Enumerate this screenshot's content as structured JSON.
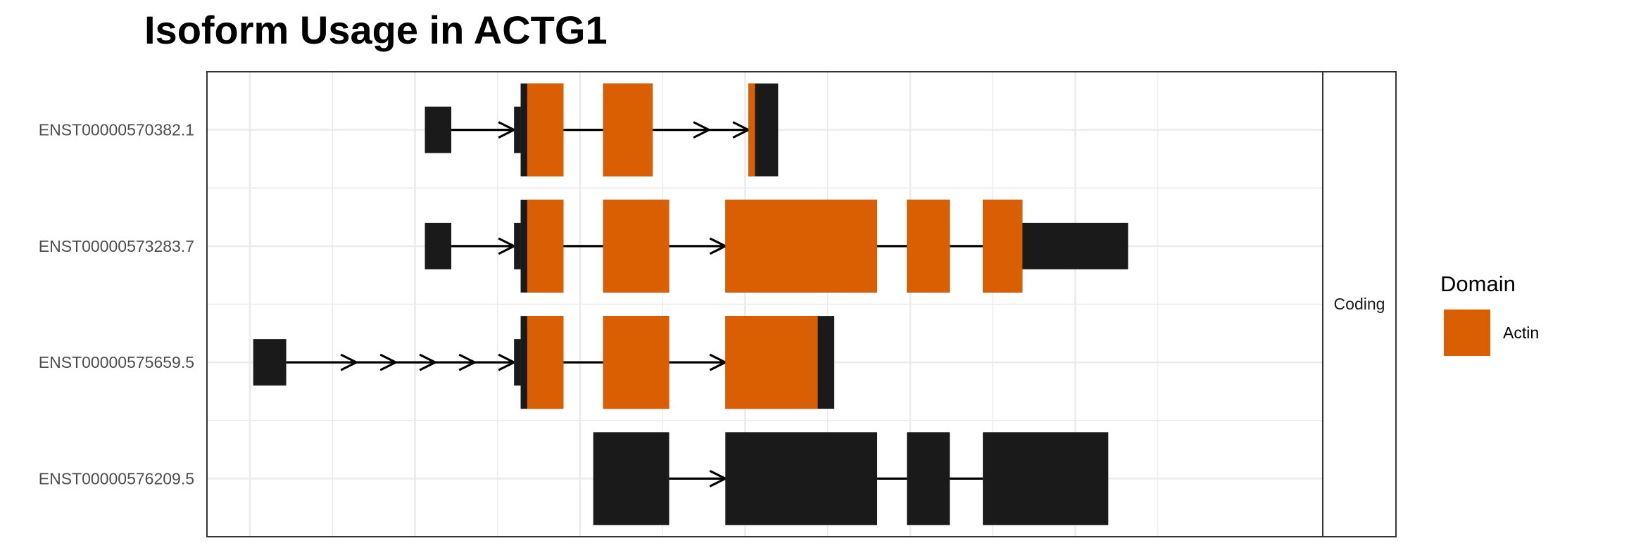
{
  "title": "Isoform Usage in ACTG1",
  "facet_label": "Coding",
  "colors": {
    "domain": "#d95f02",
    "exon": "#1a1a1a",
    "intron": "#000000",
    "grid": "#ebebeb",
    "panel_border": "#333333"
  },
  "legend": {
    "title": "Domain",
    "items": [
      {
        "label": "Actin",
        "color": "#d95f02"
      }
    ]
  },
  "chart_data": {
    "type": "gene_structure",
    "xlim": [
      0,
      290
    ],
    "strand": "+",
    "transcripts": [
      {
        "name": "ENST00000570382.1",
        "exons": [
          {
            "start": 53,
            "end": 61,
            "coding": false
          },
          {
            "start": 80,
            "end": 82,
            "coding": false
          },
          {
            "start": 82,
            "end": 95,
            "coding": true
          },
          {
            "start": 107,
            "end": 122,
            "coding": true
          },
          {
            "start": 151,
            "end": 160,
            "coding": true
          }
        ],
        "domains": [
          {
            "name": "Actin",
            "start": 84,
            "end": 95
          },
          {
            "name": "Actin",
            "start": 107,
            "end": 122
          },
          {
            "name": "Actin",
            "start": 151,
            "end": 153
          }
        ]
      },
      {
        "name": "ENST00000573283.7",
        "exons": [
          {
            "start": 53,
            "end": 61,
            "coding": false
          },
          {
            "start": 80,
            "end": 82,
            "coding": false
          },
          {
            "start": 82,
            "end": 95,
            "coding": true
          },
          {
            "start": 107,
            "end": 127,
            "coding": true
          },
          {
            "start": 144,
            "end": 190,
            "coding": true
          },
          {
            "start": 199,
            "end": 212,
            "coding": true
          },
          {
            "start": 222,
            "end": 234,
            "coding": true
          },
          {
            "start": 234,
            "end": 266,
            "coding": false
          }
        ],
        "domains": [
          {
            "name": "Actin",
            "start": 84,
            "end": 95
          },
          {
            "name": "Actin",
            "start": 107,
            "end": 127
          },
          {
            "name": "Actin",
            "start": 144,
            "end": 190
          },
          {
            "name": "Actin",
            "start": 199,
            "end": 212
          },
          {
            "name": "Actin",
            "start": 222,
            "end": 234
          }
        ]
      },
      {
        "name": "ENST00000575659.5",
        "exons": [
          {
            "start": 1,
            "end": 11,
            "coding": false
          },
          {
            "start": 80,
            "end": 82,
            "coding": false
          },
          {
            "start": 82,
            "end": 95,
            "coding": true
          },
          {
            "start": 107,
            "end": 127,
            "coding": true
          },
          {
            "start": 144,
            "end": 177,
            "coding": true
          }
        ],
        "domains": [
          {
            "name": "Actin",
            "start": 84,
            "end": 95
          },
          {
            "name": "Actin",
            "start": 107,
            "end": 127
          },
          {
            "name": "Actin",
            "start": 144,
            "end": 172
          }
        ]
      },
      {
        "name": "ENST00000576209.5",
        "exons": [
          {
            "start": 104,
            "end": 127,
            "coding": true
          },
          {
            "start": 144,
            "end": 190,
            "coding": true
          },
          {
            "start": 199,
            "end": 212,
            "coding": true
          },
          {
            "start": 222,
            "end": 260,
            "coding": true
          }
        ],
        "domains": []
      }
    ]
  }
}
